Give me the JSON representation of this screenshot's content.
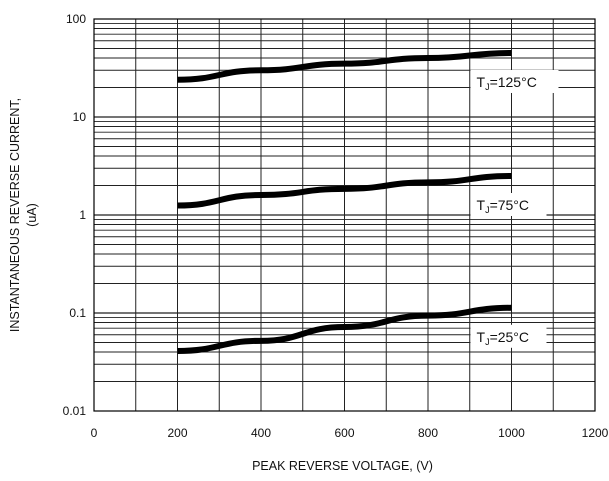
{
  "chart_data": {
    "type": "line",
    "xlabel": "PEAK REVERSE VOLTAGE, (V)",
    "ylabel_line1": "INSTANTANEOUS REVERSE CURRENT,",
    "ylabel_line2": "(uA)",
    "xlim": [
      0,
      1200
    ],
    "ylim": [
      0.01,
      100
    ],
    "yscale": "log",
    "grid": true,
    "x_ticks": [
      "0",
      "200",
      "400",
      "600",
      "800",
      "1000",
      "1200"
    ],
    "y_ticks": [
      "0.01",
      "0.1",
      "1",
      "10",
      "100"
    ],
    "series": [
      {
        "name": "TJ=125°C",
        "label_main": "T",
        "label_sub": "J",
        "label_rest": "=125°C",
        "x": [
          200,
          400,
          600,
          800,
          1000
        ],
        "y": [
          24,
          30,
          35,
          40,
          45
        ]
      },
      {
        "name": "TJ=75°C",
        "label_main": "T",
        "label_sub": "J",
        "label_rest": "=75°C",
        "x": [
          200,
          400,
          600,
          800,
          1000
        ],
        "y": [
          1.25,
          1.6,
          1.85,
          2.15,
          2.5
        ]
      },
      {
        "name": "TJ=25°C",
        "label_main": "T",
        "label_sub": "J",
        "label_rest": "=25°C",
        "x": [
          200,
          400,
          600,
          800,
          1000
        ],
        "y": [
          0.041,
          0.052,
          0.072,
          0.094,
          0.113
        ]
      }
    ],
    "colors": {
      "line": "#000000",
      "grid": "#222222",
      "background": "#ffffff"
    }
  }
}
